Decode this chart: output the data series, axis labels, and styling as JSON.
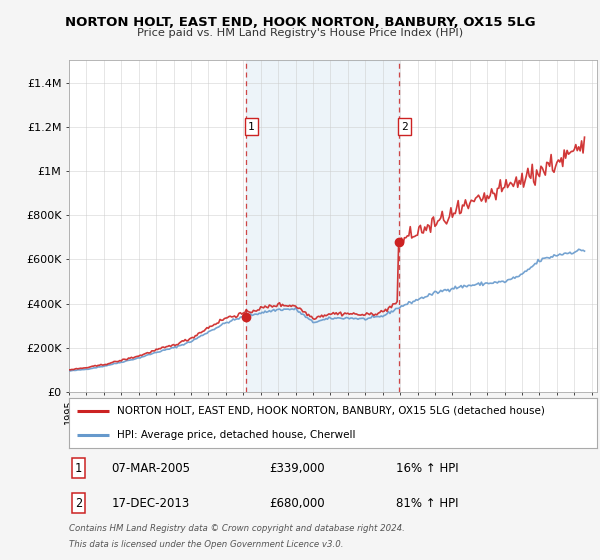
{
  "title": "NORTON HOLT, EAST END, HOOK NORTON, BANBURY, OX15 5LG",
  "subtitle": "Price paid vs. HM Land Registry's House Price Index (HPI)",
  "legend_line1": "NORTON HOLT, EAST END, HOOK NORTON, BANBURY, OX15 5LG (detached house)",
  "legend_line2": "HPI: Average price, detached house, Cherwell",
  "footnote1": "Contains HM Land Registry data © Crown copyright and database right 2024.",
  "footnote2": "This data is licensed under the Open Government Licence v3.0.",
  "annotation1_label": "1",
  "annotation1_date": "07-MAR-2005",
  "annotation1_price": "£339,000",
  "annotation1_hpi": "16% ↑ HPI",
  "annotation2_label": "2",
  "annotation2_date": "17-DEC-2013",
  "annotation2_price": "£680,000",
  "annotation2_hpi": "81% ↑ HPI",
  "ylim": [
    0,
    1500000
  ],
  "yticks": [
    0,
    200000,
    400000,
    600000,
    800000,
    1000000,
    1200000,
    1400000
  ],
  "ytick_labels": [
    "£0",
    "£200K",
    "£400K",
    "£600K",
    "£800K",
    "£1M",
    "£1.2M",
    "£1.4M"
  ],
  "plot_bg_color": "#ddeeff",
  "grid_color": "#cccccc",
  "fig_bg_color": "#f5f5f5",
  "hpi_color": "#6699cc",
  "price_color": "#cc2222",
  "marker_color": "#cc2222",
  "vline_color": "#cc3333",
  "shade_color": "#cce0f0",
  "sale1_x": 2005.17,
  "sale1_y": 339000,
  "sale2_x": 2013.96,
  "sale2_y": 680000,
  "vline1_x": 2005.17,
  "vline2_x": 2013.96,
  "xmin": 1995,
  "xmax": 2025.3
}
